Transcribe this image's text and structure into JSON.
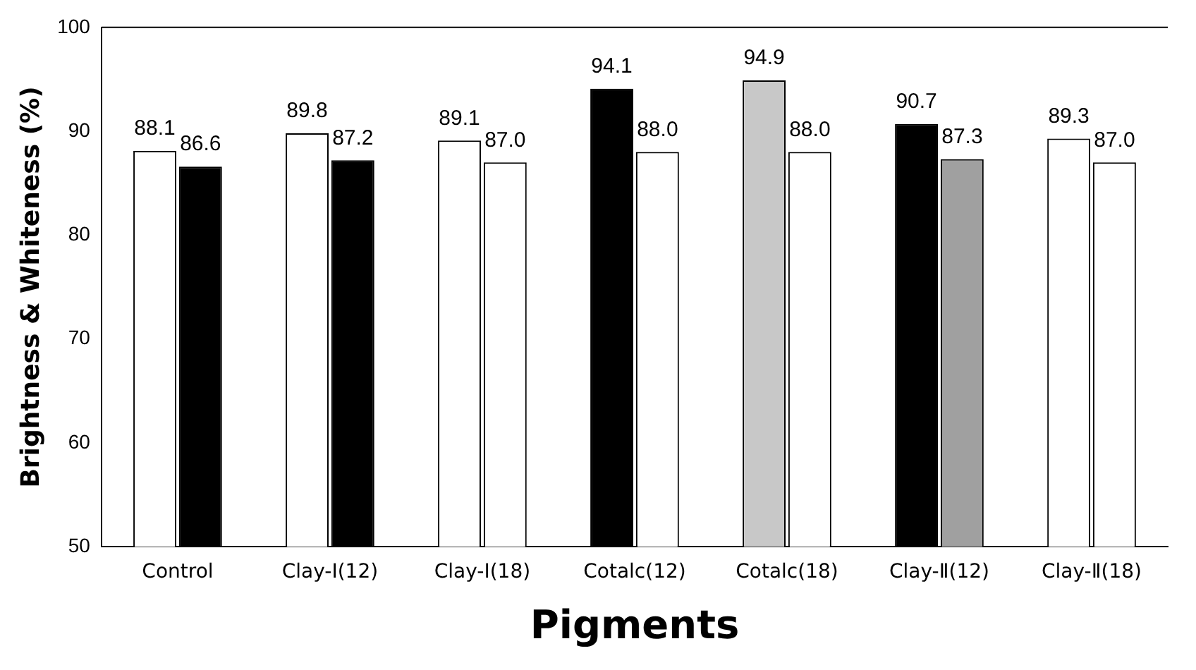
{
  "chart_data": {
    "type": "bar",
    "xlabel": "Pigments",
    "ylabel": "Brightness & Whiteness (%)",
    "categories": [
      "Control",
      "Clay-Ⅰ(12)",
      "Clay-Ⅰ(18)",
      "Cotalc(12)",
      "Cotalc(18)",
      "Clay-Ⅱ(12)",
      "Clay-Ⅱ(18)"
    ],
    "series": [
      {
        "colors": [
          "#ffffff",
          "#ffffff",
          "#ffffff",
          "#000000",
          "#c8c8c8",
          "#000000",
          "#ffffff"
        ],
        "values": [
          88.1,
          89.8,
          89.1,
          94.1,
          94.9,
          90.7,
          89.3
        ],
        "value_labels": [
          "88.1",
          "89.8",
          "89.1",
          "94.1",
          "94.9",
          "90.7",
          "89.3"
        ]
      },
      {
        "colors": [
          "#000000",
          "#000000",
          "#ffffff",
          "#ffffff",
          "#ffffff",
          "#a0a0a0",
          "#ffffff"
        ],
        "values": [
          86.6,
          87.2,
          87.0,
          88.0,
          88.0,
          87.3,
          87.0
        ],
        "value_labels": [
          "86.6",
          "87.2",
          "87.0",
          "88.0",
          "88.0",
          "87.3",
          "87.0"
        ]
      }
    ],
    "ylim": [
      50,
      100
    ],
    "yticks": [
      50,
      60,
      70,
      80,
      90,
      100
    ]
  }
}
